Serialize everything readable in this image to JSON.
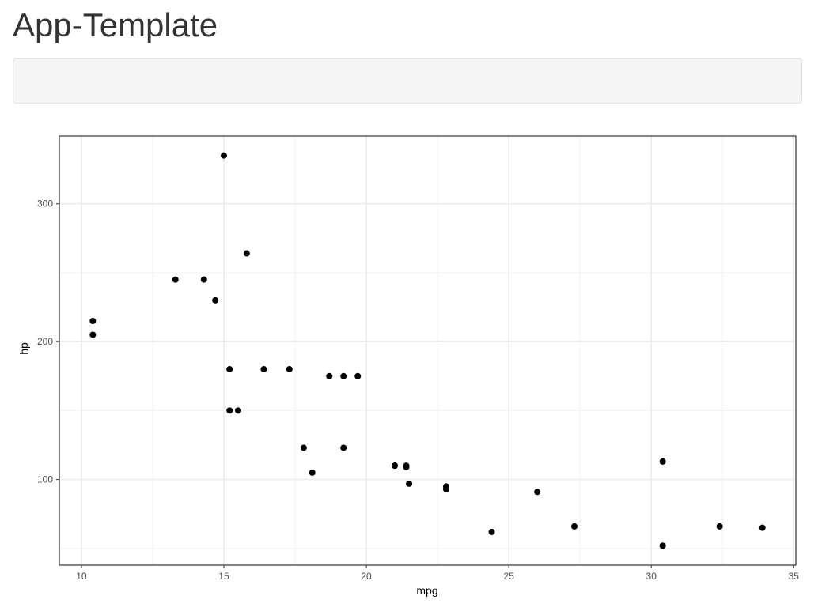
{
  "page": {
    "title": "App-Template"
  },
  "chart_data": {
    "type": "scatter",
    "x_label": "mpg",
    "y_label": "hp",
    "color": "#000000",
    "grid": true,
    "x": [
      21.0,
      21.0,
      22.8,
      21.4,
      18.7,
      18.1,
      14.3,
      24.4,
      22.8,
      19.2,
      17.8,
      16.4,
      17.3,
      15.2,
      10.4,
      10.4,
      14.7,
      32.4,
      30.4,
      33.9,
      21.5,
      15.5,
      15.2,
      13.3,
      19.2,
      27.3,
      26.0,
      30.4,
      15.8,
      19.7,
      15.0,
      21.4
    ],
    "values": [
      110,
      110,
      93,
      110,
      175,
      105,
      245,
      62,
      95,
      123,
      123,
      180,
      180,
      180,
      205,
      215,
      230,
      66,
      52,
      65,
      97,
      150,
      150,
      245,
      175,
      66,
      91,
      113,
      264,
      175,
      335,
      109
    ],
    "xlim": [
      9.225,
      35.075
    ],
    "ylim": [
      37.85,
      349.15
    ],
    "xticks": [
      10,
      15,
      20,
      25,
      30,
      35
    ],
    "yticks": [
      100,
      200,
      300
    ],
    "x_minor_grid": [
      12.5,
      17.5,
      22.5,
      27.5,
      32.5
    ],
    "y_minor_grid": [
      50,
      150,
      250
    ]
  }
}
